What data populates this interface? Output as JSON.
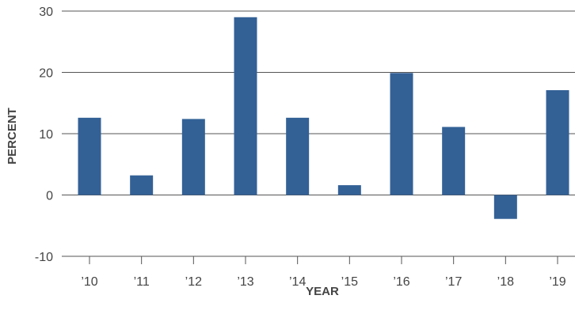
{
  "chart_data": {
    "type": "bar",
    "title": "",
    "xlabel": "YEAR",
    "ylabel": "PERCENT",
    "categories": [
      "’10",
      "’11",
      "’12",
      "’13",
      "’14",
      "’15",
      "’16",
      "’17",
      "’18",
      "’19"
    ],
    "values": [
      12.6,
      3.2,
      12.4,
      29.0,
      12.6,
      1.6,
      19.9,
      11.1,
      -3.9,
      17.1
    ],
    "ylim": [
      -10,
      30
    ],
    "yticks": [
      -10,
      0,
      10,
      20,
      30
    ],
    "grid": "horizontal",
    "legend": "none",
    "colors": {
      "bar": "#336196",
      "grid": "#555555",
      "text": "#444444"
    }
  }
}
